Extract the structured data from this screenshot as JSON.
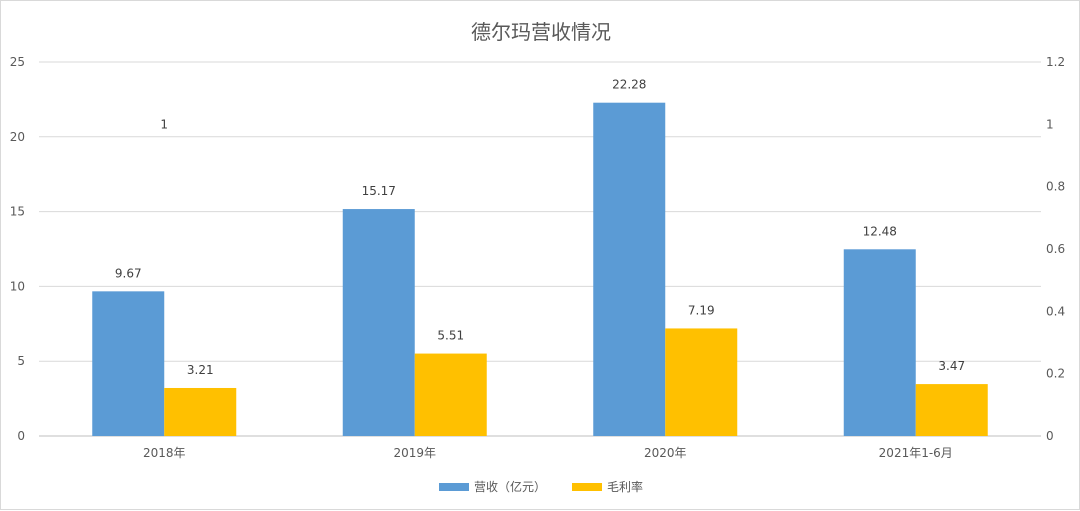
{
  "chart_data": {
    "type": "bar",
    "title": "德尔玛营收情况",
    "categories": [
      "2018年",
      "2019年",
      "2020年",
      "2021年1-6月"
    ],
    "series": [
      {
        "name": "营收（亿元）",
        "values": [
          9.67,
          15.17,
          22.28,
          12.48
        ],
        "color": "#5b9bd5",
        "axis": "left"
      },
      {
        "name": "毛利率",
        "values": [
          3.21,
          5.51,
          7.19,
          3.47
        ],
        "color": "#ffc000",
        "axis": "left"
      }
    ],
    "extra_labels": [
      {
        "category": "2018年",
        "text": "1",
        "value": 1.0,
        "axis": "right"
      }
    ],
    "ylim_left": [
      0,
      25
    ],
    "yticks_left": [
      "0",
      "5",
      "10",
      "15",
      "20",
      "25"
    ],
    "ylim_right": [
      0,
      1.2
    ],
    "yticks_right": [
      "0",
      "0.2",
      "0.4",
      "0.6",
      "0.8",
      "1",
      "1.2"
    ],
    "grid": true,
    "legend_position": "bottom"
  }
}
